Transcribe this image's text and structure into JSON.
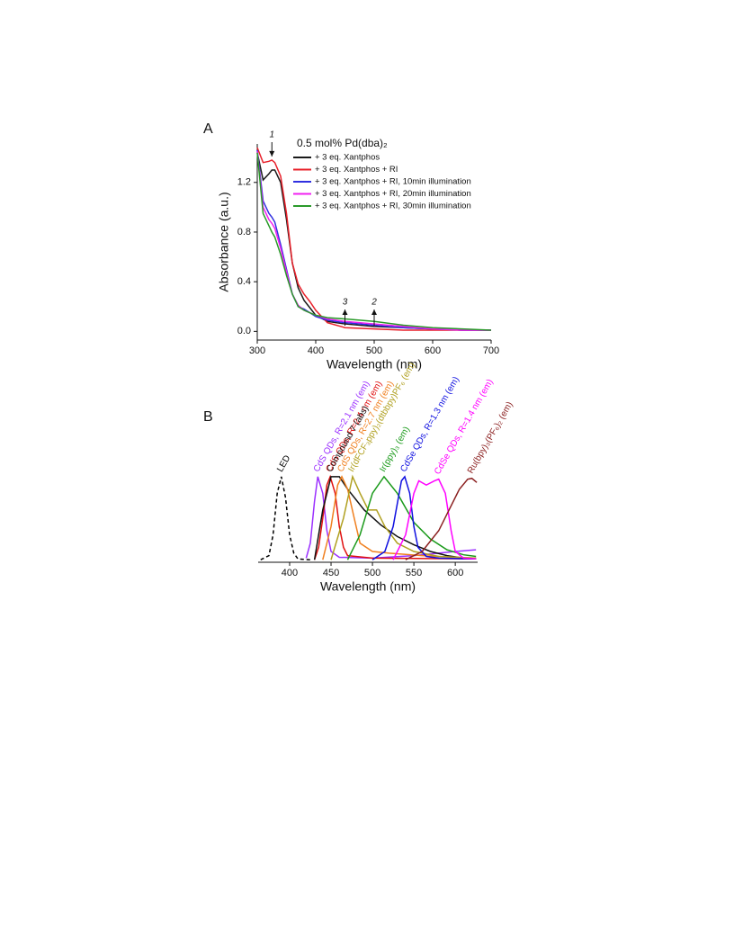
{
  "chart_data": [
    {
      "type": "line",
      "panel": "A",
      "legend_title": "0.5 mol% Pd(dba)₂",
      "legend": "top",
      "xlabel": "Wavelength (nm)",
      "ylabel": "Absorbance (a.u.)",
      "xlim": [
        300,
        700
      ],
      "ylim": [
        -0.07,
        1.51
      ],
      "xticks": [
        300,
        400,
        500,
        600,
        700
      ],
      "yticks": [
        {
          "value": 0,
          "label": "0.0"
        },
        {
          "value": 0.4,
          "label": "0.4"
        },
        {
          "value": 0.8,
          "label": "0.8"
        },
        {
          "value": 1.2,
          "label": "1.2"
        }
      ],
      "annotations": [
        {
          "text": "1",
          "x": 325
        },
        {
          "text": "3",
          "x": 450
        },
        {
          "text": "2",
          "x": 500
        }
      ],
      "series": [
        {
          "name": "+ 3 eq. Xantphos",
          "color": "#1a1a1a",
          "x": [
            300,
            310,
            320,
            325,
            330,
            340,
            350,
            360,
            370,
            380,
            390,
            400,
            420,
            450,
            500,
            550,
            600,
            650,
            700
          ],
          "values": [
            1.44,
            1.22,
            1.27,
            1.3,
            1.3,
            1.2,
            0.9,
            0.55,
            0.35,
            0.25,
            0.19,
            0.13,
            0.08,
            0.06,
            0.04,
            0.03,
            0.02,
            0.01,
            0.01
          ]
        },
        {
          "name": "+ 3 eq. Xantphos + RI",
          "color": "#e8202a",
          "x": [
            300,
            310,
            320,
            325,
            330,
            340,
            350,
            360,
            370,
            380,
            390,
            400,
            420,
            450,
            500,
            550,
            600,
            650,
            700
          ],
          "values": [
            1.48,
            1.36,
            1.37,
            1.38,
            1.36,
            1.25,
            0.95,
            0.55,
            0.38,
            0.3,
            0.24,
            0.17,
            0.07,
            0.03,
            0.02,
            0.01,
            0.01,
            0.01,
            0.01
          ]
        },
        {
          "name": "+ 3 eq. Xantphos + RI, 10min illumination",
          "color": "#3030e0",
          "x": [
            300,
            310,
            320,
            325,
            330,
            340,
            350,
            360,
            370,
            380,
            390,
            400,
            420,
            450,
            500,
            550,
            600,
            650,
            700
          ],
          "values": [
            1.46,
            1.05,
            0.95,
            0.92,
            0.88,
            0.7,
            0.5,
            0.3,
            0.2,
            0.18,
            0.15,
            0.12,
            0.09,
            0.07,
            0.05,
            0.03,
            0.02,
            0.01,
            0.01
          ]
        },
        {
          "name": "+ 3 eq. Xantphos + RI, 20min illumination",
          "color": "#f020f0",
          "x": [
            300,
            310,
            320,
            325,
            330,
            340,
            350,
            360,
            370,
            380,
            390,
            400,
            420,
            450,
            500,
            550,
            600,
            650,
            700
          ],
          "values": [
            1.45,
            1.0,
            0.9,
            0.87,
            0.83,
            0.67,
            0.48,
            0.3,
            0.21,
            0.17,
            0.15,
            0.13,
            0.1,
            0.08,
            0.06,
            0.04,
            0.02,
            0.01,
            0.01
          ]
        },
        {
          "name": "+ 3 eq. Xantphos + RI, 30min illumination",
          "color": "#2a9a2a",
          "x": [
            300,
            310,
            320,
            325,
            330,
            340,
            350,
            360,
            370,
            380,
            390,
            400,
            420,
            450,
            500,
            550,
            600,
            650,
            700
          ],
          "values": [
            1.44,
            0.95,
            0.85,
            0.8,
            0.76,
            0.62,
            0.45,
            0.3,
            0.2,
            0.17,
            0.15,
            0.13,
            0.11,
            0.1,
            0.08,
            0.05,
            0.03,
            0.02,
            0.01
          ]
        }
      ]
    },
    {
      "type": "line",
      "panel": "B",
      "xlabel": "Wavelength (nm)",
      "xlim": [
        362,
        627
      ],
      "ylim": [
        -0.03,
        1.54
      ],
      "xticks": [
        400,
        450,
        500,
        550,
        600
      ],
      "series": [
        {
          "name": "LED",
          "color": "#000000",
          "dash": true,
          "x": [
            365,
            375,
            380,
            385,
            390,
            395,
            400,
            405,
            410,
            425
          ],
          "values": [
            0,
            0.05,
            0.3,
            0.8,
            1.0,
            0.75,
            0.3,
            0.08,
            0.01,
            0
          ]
        },
        {
          "name": "CdS QDs, R=2.1 nm (em)",
          "color": "#9b30ff",
          "x": [
            420,
            425,
            430,
            434,
            440,
            445,
            450,
            460,
            500,
            550,
            600,
            625
          ],
          "values": [
            0.02,
            0.2,
            0.7,
            1.0,
            0.8,
            0.35,
            0.1,
            0.03,
            0.02,
            0.05,
            0.1,
            0.12
          ]
        },
        {
          "name": "CdS QDs, R=2.4 nm (em)",
          "color": "#e01010",
          "x": [
            430,
            435,
            440,
            445,
            449,
            455,
            460,
            465,
            470,
            500,
            625
          ],
          "values": [
            0,
            0.15,
            0.5,
            0.9,
            1.0,
            0.8,
            0.4,
            0.15,
            0.05,
            0.02,
            0.01
          ]
        },
        {
          "name": "Compound 7 (abs)",
          "color": "#111111",
          "x": [
            430,
            440,
            450,
            460,
            470,
            490,
            510,
            530,
            550,
            570,
            590,
            610,
            625
          ],
          "values": [
            0,
            0.6,
            1.0,
            1.0,
            0.85,
            0.6,
            0.42,
            0.28,
            0.18,
            0.1,
            0.05,
            0.02,
            0.01
          ]
        },
        {
          "name": "CdS QDs, R=2.7 nm (em)",
          "color": "#f08020",
          "x": [
            440,
            450,
            458,
            463,
            470,
            478,
            485,
            500,
            520,
            560,
            600,
            625
          ],
          "values": [
            0,
            0.4,
            0.9,
            1.0,
            0.85,
            0.5,
            0.2,
            0.1,
            0.08,
            0.05,
            0.03,
            0.02
          ]
        },
        {
          "name": "Ir(dFCF₃ppy)₂(dtbbpy)PF₆ (em)",
          "color": "#b0a020",
          "x": [
            450,
            465,
            476,
            485,
            495,
            505,
            515,
            530,
            550,
            580,
            625
          ],
          "values": [
            0,
            0.5,
            1.0,
            0.8,
            0.6,
            0.6,
            0.4,
            0.2,
            0.1,
            0.04,
            0.02
          ]
        },
        {
          "name": "Ir(ppy)₃ (em)",
          "color": "#1a9a1a",
          "x": [
            470,
            485,
            500,
            514,
            530,
            550,
            570,
            590,
            610,
            625
          ],
          "values": [
            0,
            0.3,
            0.8,
            1.0,
            0.8,
            0.45,
            0.25,
            0.12,
            0.06,
            0.04
          ]
        },
        {
          "name": "CdSe QDs, R=1.3 nm (em)",
          "color": "#1010e0",
          "x": [
            500,
            515,
            525,
            535,
            539,
            545,
            550,
            555,
            565,
            580,
            625
          ],
          "values": [
            0,
            0.1,
            0.4,
            0.95,
            1.0,
            0.8,
            0.4,
            0.15,
            0.04,
            0.02,
            0.01
          ]
        },
        {
          "name": "CdSe QDs, R=1.4 nm (em)",
          "color": "#ff00ff",
          "x": [
            525,
            540,
            550,
            556,
            565,
            575,
            580,
            588,
            595,
            600,
            610,
            625
          ],
          "values": [
            0,
            0.3,
            0.8,
            0.95,
            0.9,
            0.95,
            0.97,
            0.8,
            0.35,
            0.1,
            0.02,
            0.01
          ]
        },
        {
          "name": "Ru(bpy)₃(PF₆)₂ (em)",
          "color": "#8b2020",
          "x": [
            540,
            560,
            580,
            595,
            605,
            615,
            620,
            626
          ],
          "values": [
            0,
            0.1,
            0.35,
            0.65,
            0.85,
            0.97,
            0.98,
            0.93
          ]
        }
      ]
    }
  ]
}
